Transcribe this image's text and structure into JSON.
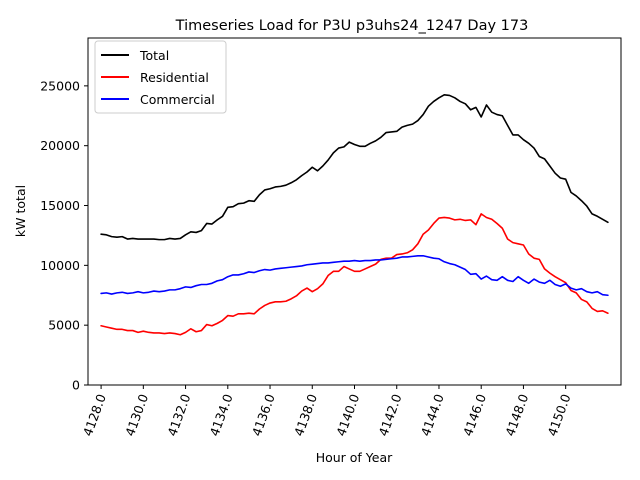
{
  "chart_data": {
    "type": "line",
    "title": "Timeseries Load for P3U p3uhs24_1247  Day 173",
    "xlabel": "Hour of Year",
    "ylabel": "kW total",
    "xlim": [
      4127.38,
      4152.62
    ],
    "ylim": [
      0,
      29000
    ],
    "xticks": [
      4128,
      4130,
      4132,
      4134,
      4136,
      4138,
      4140,
      4142,
      4144,
      4146,
      4148,
      4150
    ],
    "xtick_labels": [
      "4128.0",
      "4130.0",
      "4132.0",
      "4134.0",
      "4136.0",
      "4138.0",
      "4140.0",
      "4142.0",
      "4144.0",
      "4146.0",
      "4148.0",
      "4150.0"
    ],
    "yticks": [
      0,
      5000,
      10000,
      15000,
      20000,
      25000
    ],
    "ytick_labels": [
      "0",
      "5000",
      "10000",
      "15000",
      "20000",
      "25000"
    ],
    "grid": false,
    "legend_position": "top-left",
    "x_start": 4128,
    "x_step": 0.25,
    "series": [
      {
        "name": "Total",
        "color": "#000000",
        "values": [
          12600,
          12550,
          12400,
          12350,
          12400,
          12200,
          12250,
          12200,
          12200,
          12200,
          12200,
          12150,
          12150,
          12250,
          12200,
          12250,
          12550,
          12800,
          12750,
          12900,
          13500,
          13450,
          13800,
          14100,
          14850,
          14900,
          15150,
          15200,
          15400,
          15350,
          15900,
          16300,
          16400,
          16550,
          16600,
          16700,
          16900,
          17150,
          17500,
          17800,
          18200,
          17900,
          18300,
          18800,
          19400,
          19800,
          19900,
          20300,
          20100,
          19950,
          19950,
          20200,
          20400,
          20700,
          21100,
          21150,
          21200,
          21550,
          21700,
          21800,
          22100,
          22600,
          23300,
          23700,
          24000,
          24250,
          24200,
          24000,
          23700,
          23500,
          23000,
          23200,
          22400,
          23400,
          22800,
          22600,
          22500,
          21700,
          20900,
          20900,
          20500,
          20200,
          19800,
          19100,
          18900,
          18300,
          17700,
          17300,
          17200,
          16100,
          15800,
          15400,
          14950,
          14300,
          14100,
          13850,
          13600
        ]
      },
      {
        "name": "Residential",
        "color": "#ff0000",
        "values": [
          4950,
          4850,
          4750,
          4650,
          4650,
          4550,
          4550,
          4400,
          4500,
          4400,
          4350,
          4350,
          4300,
          4350,
          4300,
          4200,
          4400,
          4700,
          4450,
          4550,
          5050,
          4950,
          5150,
          5400,
          5800,
          5750,
          5950,
          5950,
          6000,
          5950,
          6350,
          6650,
          6850,
          6950,
          6950,
          7000,
          7200,
          7450,
          7850,
          8100,
          7800,
          8050,
          8450,
          9150,
          9500,
          9500,
          9900,
          9700,
          9500,
          9500,
          9700,
          9900,
          10100,
          10500,
          10600,
          10600,
          10900,
          10950,
          11050,
          11300,
          11800,
          12600,
          12950,
          13500,
          13950,
          14000,
          13950,
          13800,
          13850,
          13750,
          13800,
          13400,
          14300,
          14000,
          13850,
          13500,
          13100,
          12200,
          11900,
          11800,
          11700,
          10950,
          10600,
          10500,
          9700,
          9350,
          9050,
          8800,
          8550,
          7900,
          7700,
          7150,
          6950,
          6400,
          6150,
          6200,
          6000
        ]
      },
      {
        "name": "Commercial",
        "color": "#0000ff",
        "values": [
          7650,
          7700,
          7600,
          7700,
          7750,
          7650,
          7700,
          7800,
          7700,
          7750,
          7850,
          7800,
          7850,
          7950,
          7950,
          8050,
          8200,
          8150,
          8300,
          8400,
          8400,
          8500,
          8700,
          8800,
          9050,
          9200,
          9200,
          9300,
          9450,
          9400,
          9550,
          9650,
          9600,
          9700,
          9750,
          9800,
          9850,
          9900,
          9950,
          10050,
          10100,
          10150,
          10200,
          10200,
          10250,
          10300,
          10350,
          10350,
          10400,
          10350,
          10400,
          10400,
          10450,
          10450,
          10500,
          10550,
          10600,
          10700,
          10700,
          10750,
          10800,
          10800,
          10700,
          10600,
          10550,
          10300,
          10150,
          10050,
          9850,
          9650,
          9250,
          9300,
          8850,
          9100,
          8800,
          8750,
          9050,
          8750,
          8650,
          9050,
          8750,
          8500,
          8850,
          8600,
          8500,
          8750,
          8400,
          8250,
          8450,
          8100,
          7950,
          8050,
          7800,
          7700,
          7800,
          7550,
          7500
        ]
      }
    ]
  }
}
